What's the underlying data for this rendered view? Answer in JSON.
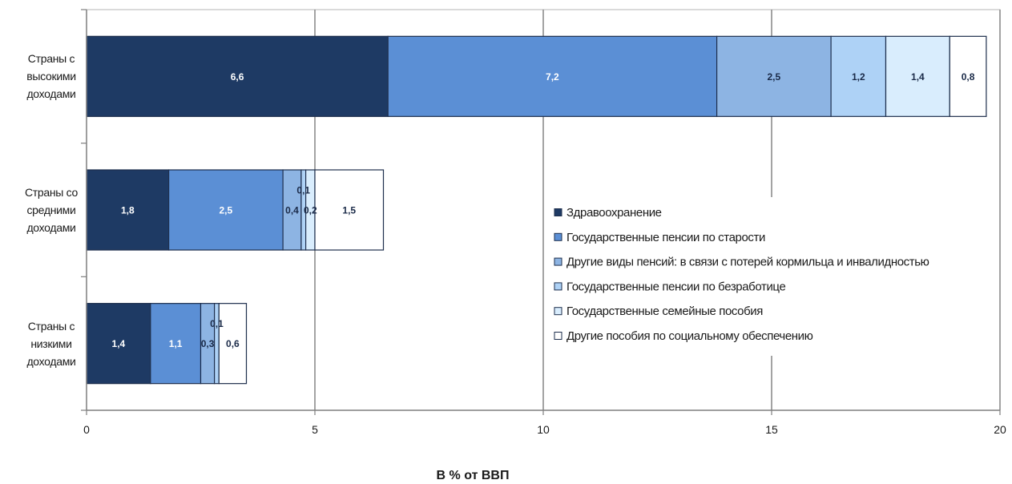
{
  "chart_data": {
    "type": "bar",
    "orientation": "horizontal",
    "stacked": true,
    "categories": [
      "Страны с высокими доходами",
      "Страны со средними доходами",
      "Страны с низкими доходами"
    ],
    "series": [
      {
        "name": "Здравоохранение",
        "color": "#1e3a64",
        "label_color": "#ffffff",
        "values": [
          6.6,
          1.8,
          1.4
        ],
        "labels": [
          "6,6",
          "1,8",
          "1,4"
        ]
      },
      {
        "name": "Государственные пенсии по старости",
        "color": "#5b8fd5",
        "label_color": "#ffffff",
        "values": [
          7.2,
          2.5,
          1.1
        ],
        "labels": [
          "7,2",
          "2,5",
          "1,1"
        ]
      },
      {
        "name": "Другие виды пенсий: в связи с потерей кормильца и инвалидностью",
        "color": "#8db4e3",
        "label_color": "#1a2a48",
        "values": [
          2.5,
          0.4,
          0.3
        ],
        "labels": [
          "2,5",
          "0,4",
          "0,3"
        ]
      },
      {
        "name": "Государственные пенсии по безработице",
        "color": "#aed2f6",
        "label_color": "#1a2a48",
        "values": [
          1.2,
          0.1,
          0.1
        ],
        "labels": [
          "1,2",
          "0,1",
          "0,1"
        ]
      },
      {
        "name": "Государственные семейные пособия",
        "color": "#d9edfd",
        "label_color": "#1a2a48",
        "values": [
          1.4,
          0.2,
          null
        ],
        "labels": [
          "1,4",
          "0,2",
          null
        ]
      },
      {
        "name": "Другие пособия по социальному обеспечению",
        "color": "#ffffff",
        "label_color": "#1a2a48",
        "values": [
          0.8,
          1.5,
          0.6
        ],
        "labels": [
          "0,8",
          "1,5",
          "0,6"
        ]
      }
    ],
    "xlabel": "В % от ВВП",
    "xlim": [
      0,
      20
    ],
    "xticks": [
      0,
      5,
      10,
      15,
      20
    ],
    "grid": true,
    "legend_position": "inside plot, right"
  },
  "colors": {
    "outline": "#1e2f4d",
    "grid": "#8c8c8c",
    "axis": "#7f7f7f",
    "frame": "#b5b5b5",
    "text": "#1a1a1a"
  }
}
